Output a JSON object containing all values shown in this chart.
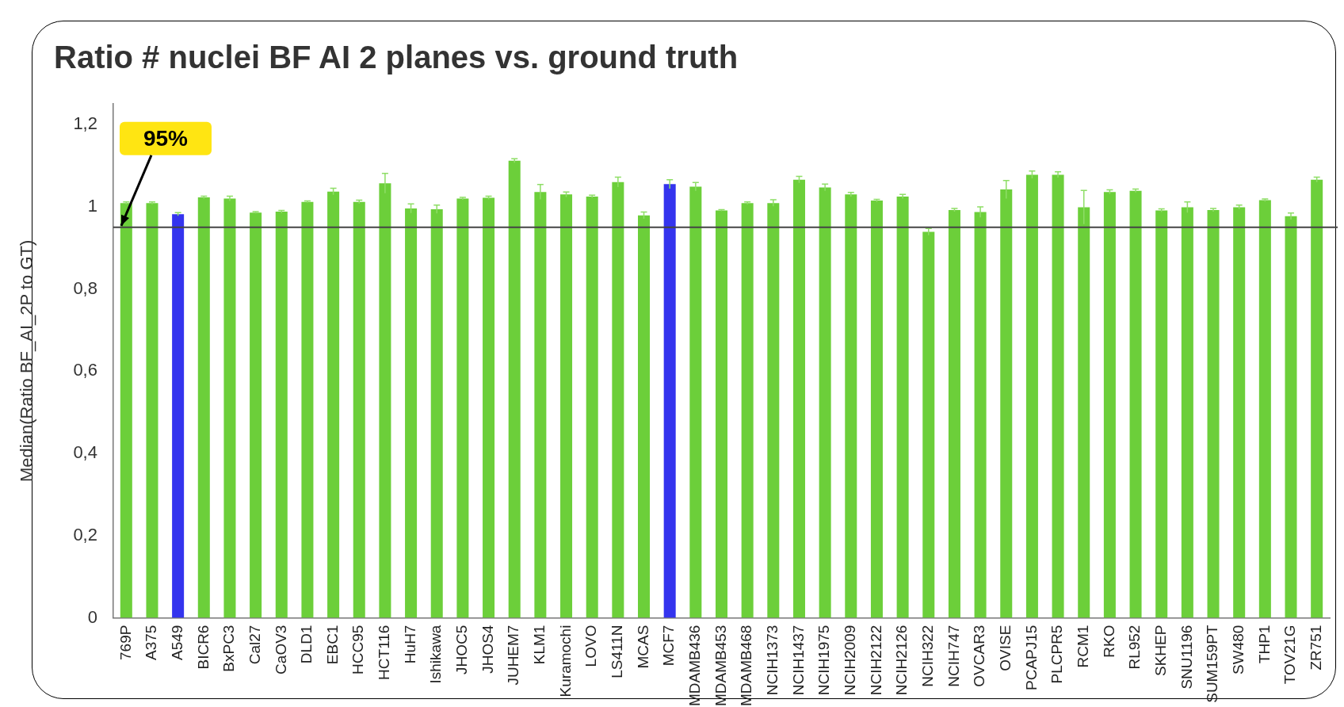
{
  "chart_data": {
    "type": "bar",
    "title": "Ratio # nuclei BF AI 2 planes vs. ground truth",
    "ylabel": "Median(Ratio BF_AI_2P to GT)",
    "categories": [
      "769P",
      "A375",
      "A549",
      "BICR6",
      "BxPC3",
      "Cal27",
      "CaOV3",
      "DLD1",
      "EBC1",
      "HCC95",
      "HCT116",
      "HuH7",
      "Ishikawa",
      "JHOC5",
      "JHOS4",
      "JUHEM7",
      "KLM1",
      "Kuramochi",
      "LOVO",
      "LS411N",
      "MCAS",
      "MCF7",
      "MDAMB436",
      "MDAMB453",
      "MDAMB468",
      "NCIH1373",
      "NCIH1437",
      "NCIH1975",
      "NCIH2009",
      "NCIH2122",
      "NCIH2126",
      "NCIH322",
      "NCIH747",
      "OVCAR3",
      "OVISE",
      "PCAPJ15",
      "PLCPR5",
      "RCM1",
      "RKO",
      "RL952",
      "SKHEP",
      "SNU1196",
      "SUM159PT",
      "SW480",
      "THP1",
      "TOV21G",
      "ZR751"
    ],
    "values": [
      1.009,
      1.009,
      0.982,
      1.023,
      1.02,
      0.986,
      0.988,
      1.012,
      1.037,
      1.012,
      1.057,
      0.996,
      0.994,
      1.02,
      1.022,
      1.112,
      1.036,
      1.03,
      1.025,
      1.06,
      0.979,
      1.055,
      1.049,
      0.991,
      1.009,
      1.009,
      1.066,
      1.047,
      1.03,
      1.015,
      1.025,
      0.939,
      0.992,
      0.987,
      1.042,
      1.078,
      1.078,
      0.999,
      1.036,
      1.039,
      0.991,
      0.999,
      0.992,
      0.999,
      1.016,
      0.977,
      1.066
    ],
    "errors": [
      0.003,
      0.003,
      0.004,
      0.003,
      0.006,
      0.002,
      0.003,
      0.002,
      0.008,
      0.004,
      0.024,
      0.011,
      0.01,
      0.003,
      0.004,
      0.005,
      0.018,
      0.006,
      0.003,
      0.012,
      0.008,
      0.011,
      0.01,
      0.002,
      0.003,
      0.008,
      0.008,
      0.008,
      0.005,
      0.003,
      0.005,
      0.008,
      0.004,
      0.013,
      0.022,
      0.009,
      0.007,
      0.041,
      0.005,
      0.004,
      0.004,
      0.013,
      0.004,
      0.005,
      0.003,
      0.008,
      0.006
    ],
    "colors": [
      "#6ccf3a",
      "#6ccf3a",
      "#3434ee",
      "#6ccf3a",
      "#6ccf3a",
      "#6ccf3a",
      "#6ccf3a",
      "#6ccf3a",
      "#6ccf3a",
      "#6ccf3a",
      "#6ccf3a",
      "#6ccf3a",
      "#6ccf3a",
      "#6ccf3a",
      "#6ccf3a",
      "#6ccf3a",
      "#6ccf3a",
      "#6ccf3a",
      "#6ccf3a",
      "#6ccf3a",
      "#6ccf3a",
      "#3434ee",
      "#6ccf3a",
      "#6ccf3a",
      "#6ccf3a",
      "#6ccf3a",
      "#6ccf3a",
      "#6ccf3a",
      "#6ccf3a",
      "#6ccf3a",
      "#6ccf3a",
      "#6ccf3a",
      "#6ccf3a",
      "#6ccf3a",
      "#6ccf3a",
      "#6ccf3a",
      "#6ccf3a",
      "#6ccf3a",
      "#6ccf3a",
      "#6ccf3a",
      "#6ccf3a",
      "#6ccf3a",
      "#6ccf3a",
      "#6ccf3a",
      "#6ccf3a",
      "#6ccf3a",
      "#6ccf3a"
    ],
    "ylim": [
      0,
      1.25
    ],
    "yticks": [
      0,
      {
        "value": 0.2,
        "label": "0,2"
      },
      {
        "value": 0.4,
        "label": "0,4"
      },
      {
        "value": 0.6,
        "label": "0,6"
      },
      {
        "value": 0.8,
        "label": "0,8"
      },
      1,
      {
        "value": 1.2,
        "label": "1,2"
      }
    ],
    "ref_lines": [
      {
        "axis": "y",
        "value": 0.95,
        "label": "95%",
        "color": "#444444"
      }
    ],
    "grid": false,
    "legend": false
  }
}
